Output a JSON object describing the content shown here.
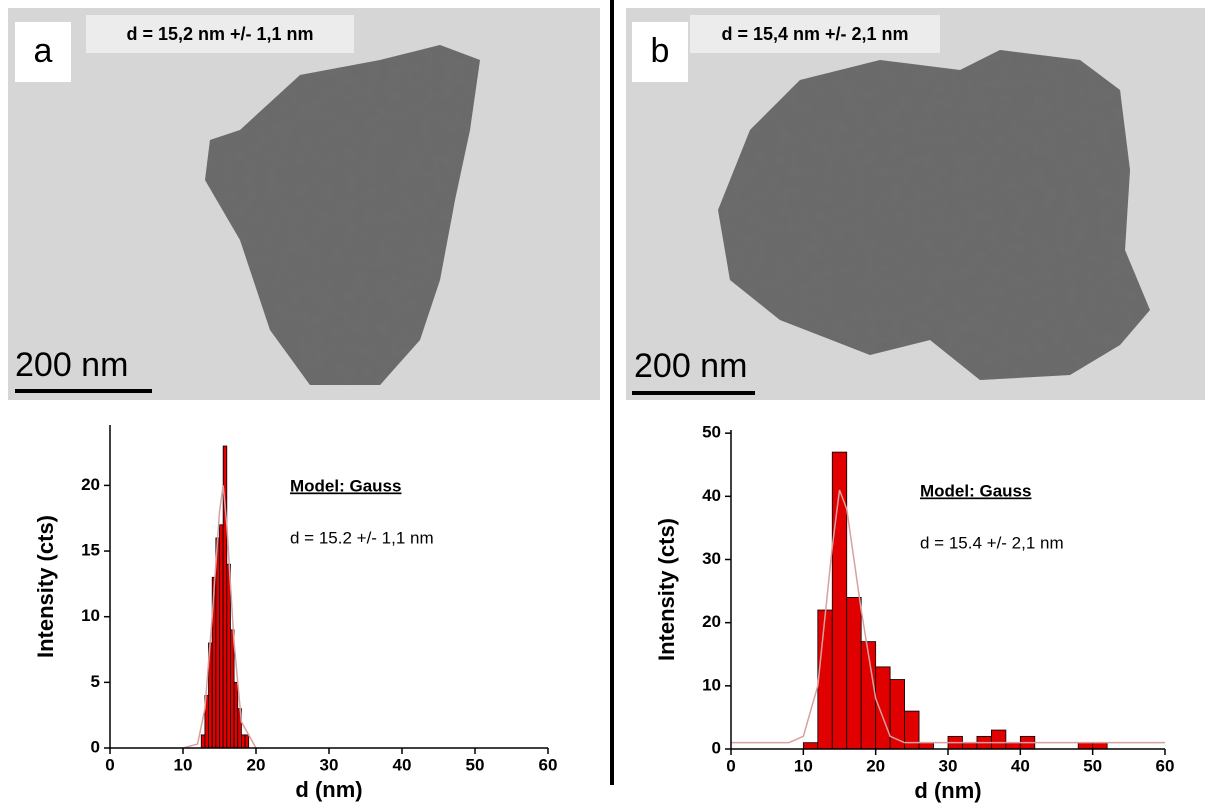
{
  "images": [
    {
      "label": "a",
      "caption": "d = 15,2 nm +/- 1,1 nm",
      "scale_bar": "200 nm"
    },
    {
      "label": "b",
      "caption": "d = 15,4 nm +/- 2,1 nm",
      "scale_bar": "200 nm"
    }
  ],
  "chart_data": [
    {
      "type": "histogram",
      "x_label": "d (nm)",
      "y_label": "Intensity (cts)",
      "color": "#e00000",
      "bins": [
        12.5,
        13,
        13.5,
        14,
        14.5,
        15,
        15.5,
        16,
        16.5,
        17,
        17.5,
        18,
        18.5,
        19
      ],
      "values": [
        1,
        4,
        8,
        13,
        16,
        17,
        23,
        14,
        9,
        5,
        3,
        1,
        1
      ],
      "fit": {
        "color": "#d9a0a0",
        "x": [
          10,
          12,
          13,
          14,
          15,
          15.5,
          16,
          17,
          18,
          20
        ],
        "values": [
          0,
          0.3,
          3,
          10,
          18,
          20,
          17,
          8,
          2,
          0
        ]
      },
      "annotations": [
        "Model: Gauss",
        "d = 15.2 +/- 1,1 nm"
      ],
      "xlim": [
        0,
        60
      ],
      "xticks": [
        0,
        10,
        20,
        30,
        40,
        50,
        60
      ],
      "ylim": [
        0,
        24.6
      ],
      "yticks": [
        0,
        5,
        10,
        15,
        20
      ]
    },
    {
      "type": "histogram",
      "x_label": "d (nm)",
      "y_label": "Intensity (cts)",
      "color": "#e00000",
      "bins": [
        10,
        12,
        14,
        16,
        18,
        20,
        22,
        24,
        26,
        28,
        30,
        32,
        34,
        36,
        38,
        40,
        42,
        44,
        46,
        48,
        50,
        52
      ],
      "values": [
        1,
        22,
        47,
        24,
        17,
        13,
        11,
        6,
        1,
        0,
        2,
        1,
        2,
        3,
        1,
        2,
        0,
        0,
        0,
        1,
        1
      ],
      "fit": {
        "color": "#d9a0a0",
        "x": [
          0,
          8,
          10,
          12,
          14,
          15,
          16,
          18,
          20,
          22,
          24,
          60
        ],
        "values": [
          1,
          1,
          2,
          10,
          32,
          41,
          38,
          22,
          8,
          2,
          1,
          1
        ]
      },
      "annotations": [
        "Model: Gauss",
        "d = 15.4 +/- 2,1 nm"
      ],
      "xlim": [
        0,
        60
      ],
      "xticks": [
        0,
        10,
        20,
        30,
        40,
        50,
        60
      ],
      "ylim": [
        0,
        50.5
      ],
      "yticks": [
        0,
        10,
        20,
        30,
        40,
        50
      ]
    }
  ]
}
